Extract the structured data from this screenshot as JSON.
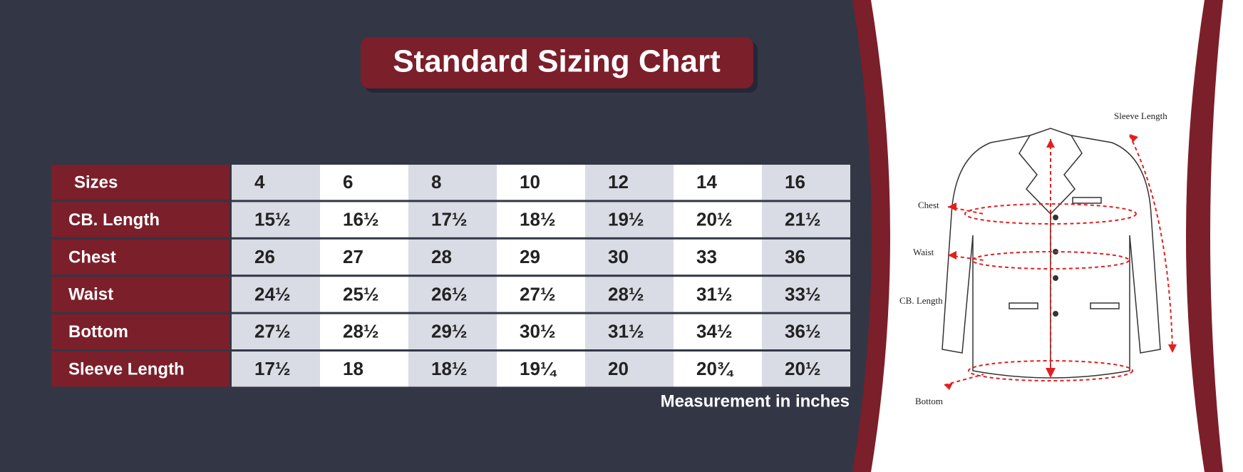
{
  "title": "Standard Sizing Chart",
  "table": {
    "header": [
      "Sizes",
      4,
      6,
      8,
      10,
      12,
      14,
      16
    ],
    "rows": [
      [
        "CB. Length",
        "15½",
        "16½",
        "17½",
        "18½",
        "19½",
        "20½",
        "21½"
      ],
      [
        "Chest",
        26,
        27,
        28,
        29,
        30,
        33,
        36
      ],
      [
        "Waist",
        "24½",
        "25½",
        "26½",
        "27½",
        "28½",
        "31½",
        "33½"
      ],
      [
        "Bottom",
        "27½",
        "28½",
        "29½",
        "30½",
        "31½",
        "34½",
        "36½"
      ],
      [
        "Sleeve Length",
        "17½",
        18,
        "18½",
        "19¼",
        20,
        "20¾",
        "20½"
      ]
    ]
  },
  "note": "Measurement in inches",
  "diagram": {
    "labels": [
      "Sleeve Length",
      "Chest",
      "Waist",
      "CB. Length",
      "Bottom"
    ]
  }
}
